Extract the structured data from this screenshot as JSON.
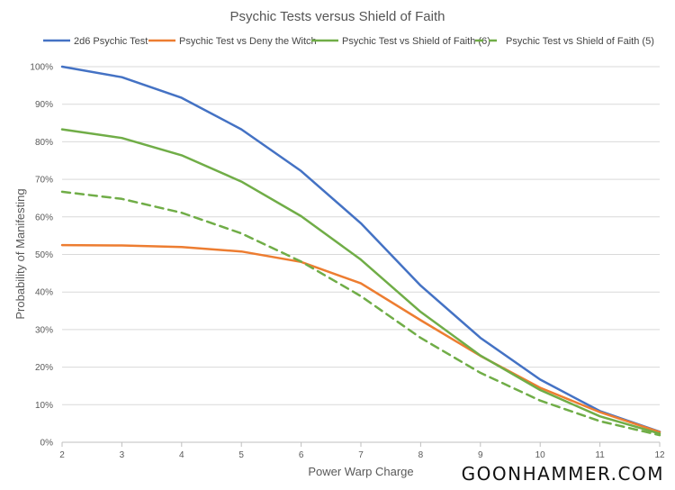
{
  "chart_data": {
    "type": "line",
    "title": "Psychic Tests versus Shield of Faith",
    "xlabel": "Power Warp Charge",
    "ylabel": "Probability of Manifesting",
    "x": [
      2,
      3,
      4,
      5,
      6,
      7,
      8,
      9,
      10,
      11,
      12
    ],
    "ylim": [
      0,
      100
    ],
    "yticks": [
      0,
      10,
      20,
      30,
      40,
      50,
      60,
      70,
      80,
      90,
      100
    ],
    "ytick_labels": [
      "0%",
      "10%",
      "20%",
      "30%",
      "40%",
      "50%",
      "60%",
      "70%",
      "80%",
      "90%",
      "100%"
    ],
    "grid": true,
    "legend_position": "top",
    "series": [
      {
        "name": "2d6 Psychic Test",
        "color": "#4472c4",
        "dashed": false,
        "values": [
          100,
          97.2,
          91.7,
          83.3,
          72.2,
          58.3,
          41.7,
          27.8,
          16.7,
          8.3,
          2.8
        ]
      },
      {
        "name": "Psychic Test vs Deny the Witch",
        "color": "#ed7d31",
        "dashed": false,
        "values": [
          52.5,
          52.4,
          52.0,
          50.8,
          48.0,
          42.3,
          32.5,
          23.0,
          14.5,
          8.0,
          2.7
        ]
      },
      {
        "name": "Psychic Test vs Shield of Faith (6)",
        "color": "#70ad47",
        "dashed": false,
        "values": [
          83.3,
          81.0,
          76.4,
          69.4,
          60.2,
          48.6,
          34.7,
          23.1,
          13.9,
          6.9,
          2.3
        ]
      },
      {
        "name": "Psychic Test vs Shield of Faith (5)",
        "color": "#70ad47",
        "dashed": true,
        "values": [
          66.7,
          64.8,
          61.1,
          55.6,
          48.1,
          38.9,
          27.8,
          18.5,
          11.1,
          5.6,
          1.9
        ]
      }
    ]
  },
  "branding": {
    "text": "GOONHAMMER.COM"
  }
}
